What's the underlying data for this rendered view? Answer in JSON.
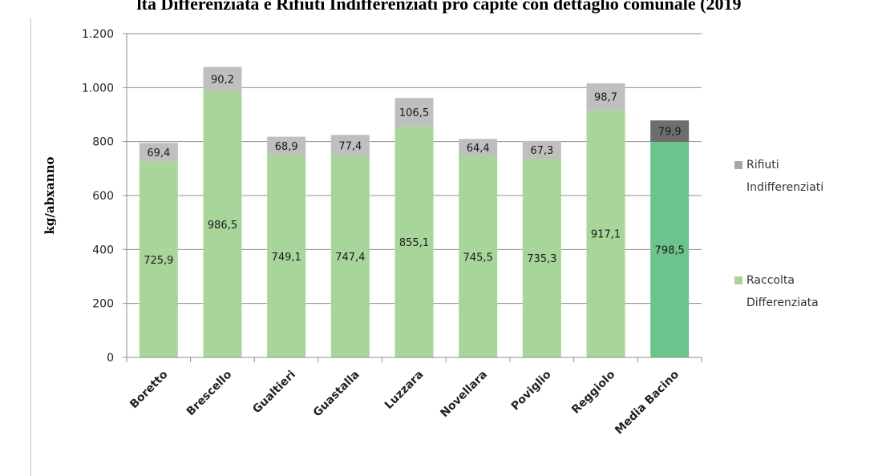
{
  "title": "lta Differenziata e Rifiuti Indifferenziati pro capite con dettaglio comunale (2019",
  "chart_data": {
    "type": "bar",
    "stacked": true,
    "categories": [
      "Boretto",
      "Brescello",
      "Gualtieri",
      "Guastalla",
      "Luzzara",
      "Novellara",
      "Poviglio",
      "Reggiolo",
      "Media Bacino"
    ],
    "series": [
      {
        "name": "Raccolta Differenziata",
        "values": [
          725.9,
          986.5,
          749.1,
          747.4,
          855.1,
          745.5,
          735.3,
          917.1,
          798.5
        ],
        "labels": [
          "725,9",
          "986,5",
          "749,1",
          "747,4",
          "855,1",
          "745,5",
          "735,3",
          "917,1",
          "798,5"
        ],
        "color": "#a8d59a",
        "highlight_color": "#6cc38c"
      },
      {
        "name": "Rifiuti Indifferenziati",
        "values": [
          69.4,
          90.2,
          68.9,
          77.4,
          106.5,
          64.4,
          67.3,
          98.7,
          79.9
        ],
        "labels": [
          "69,4",
          "90,2",
          "68,9",
          "77,4",
          "106,5",
          "64,4",
          "67,3",
          "98,7",
          "79,9"
        ],
        "color": "#bfbfbf",
        "highlight_color": "#6e6e6e"
      }
    ],
    "ylabel": "kg/abxanno",
    "ylim": [
      0,
      1200
    ],
    "yticks": [
      0,
      200,
      400,
      600,
      800,
      1000,
      1200
    ],
    "ytick_labels": [
      "0",
      "200",
      "400",
      "600",
      "800",
      "1.000",
      "1.200"
    ],
    "grid": true,
    "legend_position": "right",
    "legend": [
      {
        "lines": [
          "Rifiuti",
          "Indifferenziati"
        ],
        "color": "#a6a6a6"
      },
      {
        "lines": [
          "Raccolta",
          "Differenziata"
        ],
        "color": "#a8d59a"
      }
    ]
  }
}
